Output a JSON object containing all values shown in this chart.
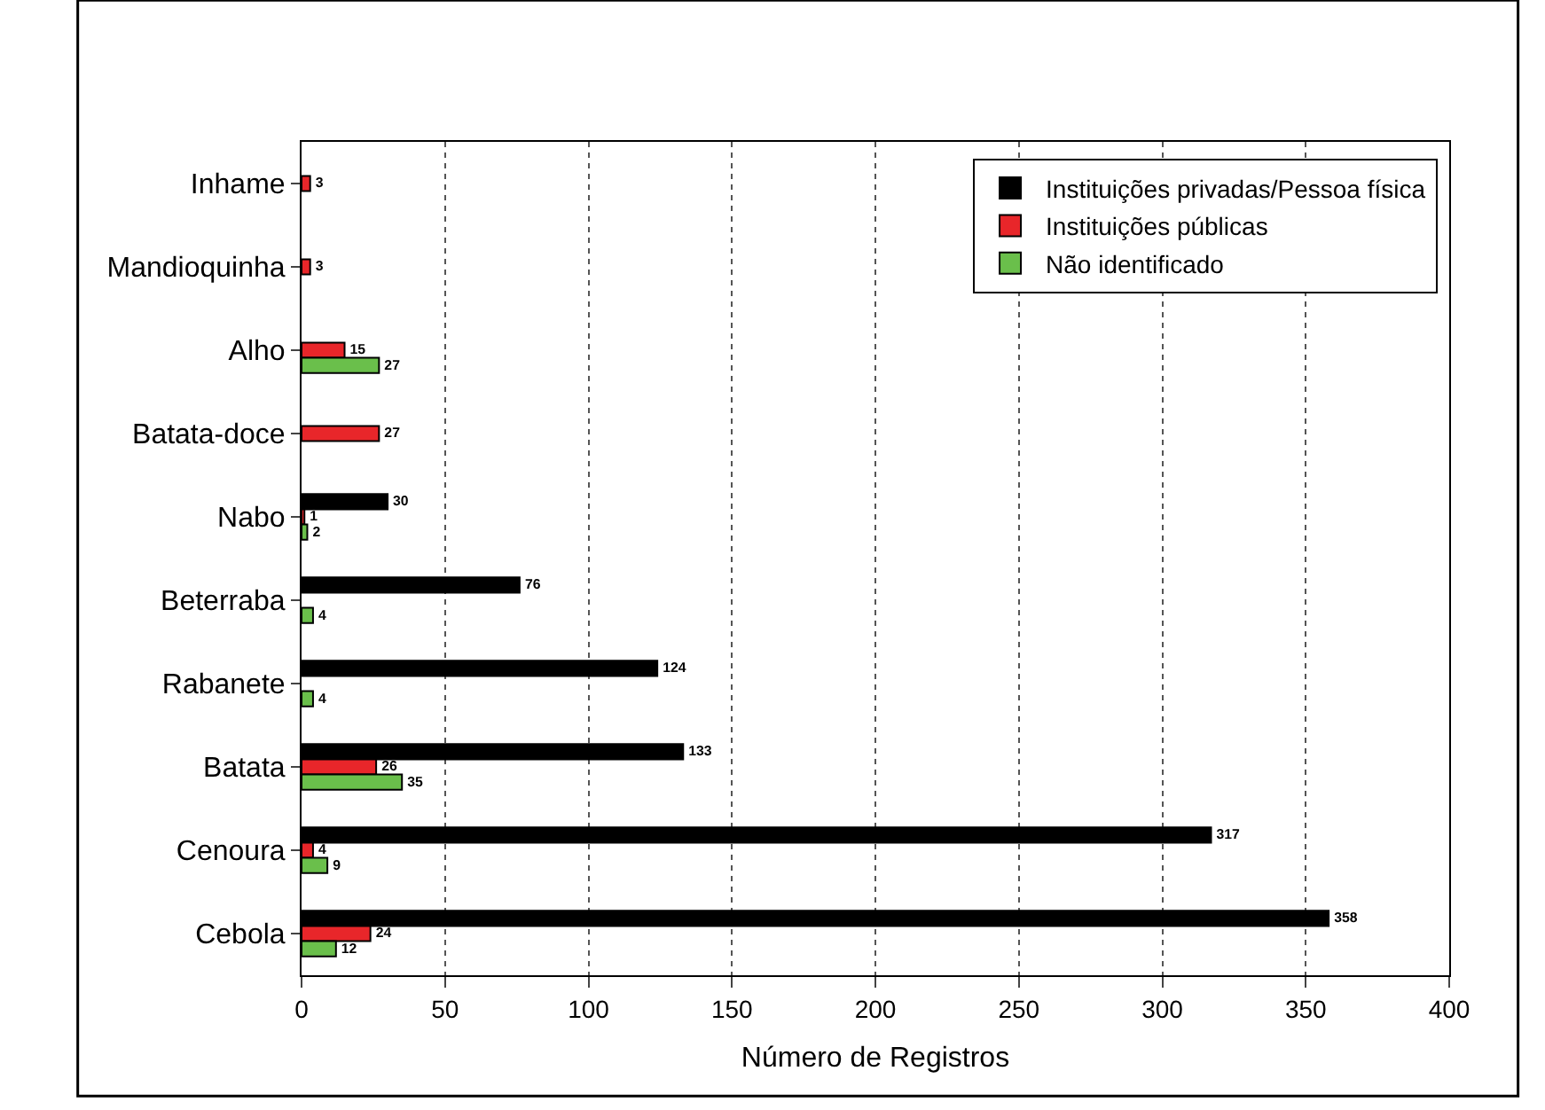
{
  "chart_data": {
    "type": "bar",
    "orientation": "horizontal",
    "xlabel": "Número de Registros",
    "categories": [
      "Inhame",
      "Mandioquinha",
      "Alho",
      "Batata-doce",
      "Nabo",
      "Beterraba",
      "Rabanete",
      "Batata",
      "Cenoura",
      "Cebola"
    ],
    "series": [
      {
        "name": "Instituições privadas/Pessoa física",
        "color": "#000000",
        "values": [
          null,
          null,
          null,
          null,
          30,
          76,
          124,
          133,
          317,
          358
        ]
      },
      {
        "name": "Instituições públicas",
        "color": "#e8262a",
        "values": [
          3,
          3,
          15,
          27,
          1,
          null,
          null,
          26,
          4,
          24
        ]
      },
      {
        "name": "Não identificado",
        "color": "#6abf4b",
        "values": [
          null,
          null,
          27,
          null,
          2,
          4,
          4,
          35,
          9,
          12
        ]
      }
    ],
    "xlim": [
      0,
      400
    ],
    "xticks": [
      0,
      50,
      100,
      150,
      200,
      250,
      300,
      350,
      400
    ],
    "grid": "x",
    "legend": "top right",
    "data_labels": true
  }
}
